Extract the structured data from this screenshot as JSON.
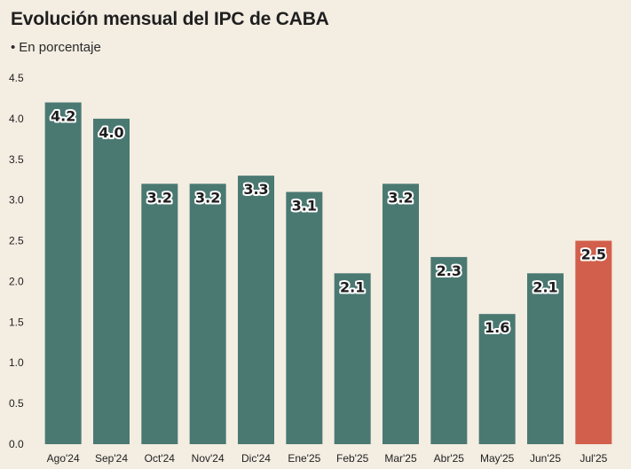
{
  "header": {
    "title": "Evolución mensual del IPC de CABA",
    "subtitle_bullet": "•",
    "subtitle": "En porcentaje"
  },
  "colors": {
    "background": "#f3ede2",
    "bar": "#4a7972",
    "highlight_bar": "#d25f4b"
  },
  "chart_data": {
    "type": "bar",
    "title": "Evolución mensual del IPC de CABA",
    "subtitle": "En porcentaje",
    "categories": [
      "Ago'24",
      "Sep'24",
      "Oct'24",
      "Nov'24",
      "Dic'24",
      "Ene'25",
      "Feb'25",
      "Mar'25",
      "Abr'25",
      "May'25",
      "Jun'25",
      "Jul'25"
    ],
    "values": [
      4.2,
      4.0,
      3.2,
      3.2,
      3.3,
      3.1,
      2.1,
      3.2,
      2.3,
      1.6,
      2.1,
      2.5
    ],
    "data_labels": [
      "4.2",
      "4.0",
      "3.2",
      "3.2",
      "3.3",
      "3.1",
      "2.1",
      "3.2",
      "2.3",
      "1.6",
      "2.1",
      "2.5"
    ],
    "highlight": "Jul'25",
    "ylim": [
      0,
      4.5
    ],
    "yticks": [
      "0.0",
      "0.5",
      "1.0",
      "1.5",
      "2.0",
      "2.5",
      "3.0",
      "3.5",
      "4.0",
      "4.5"
    ],
    "xlabel": "",
    "ylabel": "",
    "grid": false,
    "legend": "none"
  }
}
